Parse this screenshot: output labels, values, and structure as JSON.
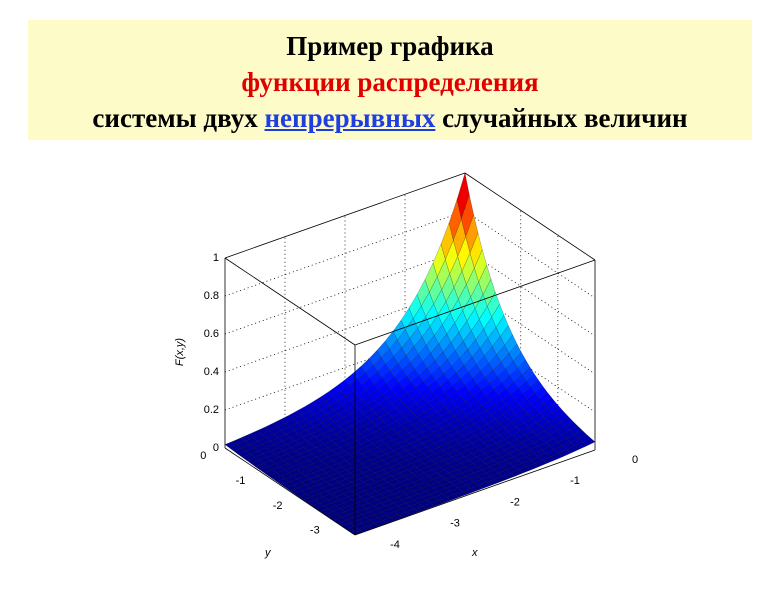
{
  "header": {
    "line1": "Пример графика",
    "line2": "функции распределения",
    "line3_before": "системы двух",
    "line3_link": "непрерывных",
    "line3_after": "случайных величин"
  },
  "figure": {
    "z_label": "F(x,y)",
    "x_label": "x",
    "y_label": "y",
    "z_ticks": [
      "0",
      "0.2",
      "0.4",
      "0.6",
      "0.8",
      "1"
    ],
    "x_ticks": [
      "-4",
      "-3",
      "-2",
      "-1",
      "0"
    ],
    "y_ticks": [
      "-3",
      "-2",
      "-1",
      "0"
    ]
  }
}
